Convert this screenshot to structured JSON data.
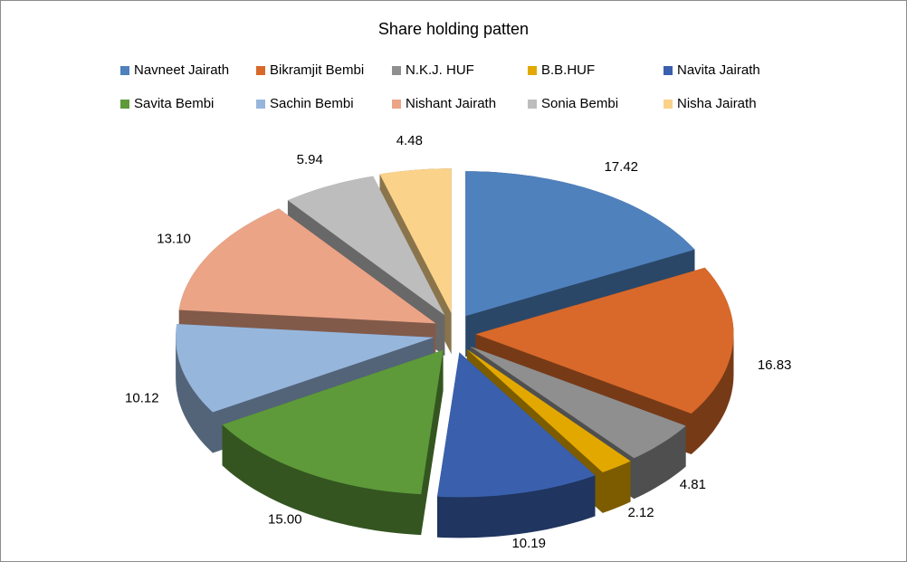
{
  "chart_data": {
    "type": "pie3d",
    "title": "Share holding patten",
    "categories": [
      "Navneet Jairath",
      "Bikramjit Bembi",
      "N.K.J. HUF",
      "B.B.HUF",
      "Navita Jairath",
      "Savita Bembi",
      "Sachin Bembi",
      "Nishant Jairath",
      "Sonia Bembi",
      "Nisha Jairath"
    ],
    "values": [
      17.42,
      16.83,
      4.81,
      2.12,
      10.19,
      15.0,
      10.12,
      13.1,
      5.94,
      4.48
    ],
    "value_labels": [
      "17.42",
      "16.83",
      "4.81",
      "2.12",
      "10.19",
      "15.00",
      "10.12",
      "13.10",
      "5.94",
      "4.48"
    ],
    "colors": [
      "#4f81bd",
      "#d8692a",
      "#8f8f8f",
      "#e3a800",
      "#3a60ad",
      "#5e9a3a",
      "#97b6dc",
      "#eca486",
      "#bdbdbd",
      "#fbd289"
    ],
    "legend": "top"
  }
}
